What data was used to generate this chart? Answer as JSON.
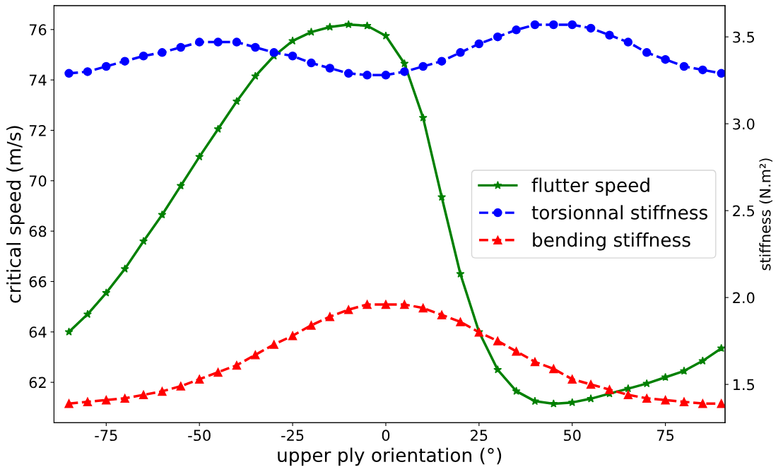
{
  "chart_data": {
    "type": "line",
    "xlabel": "upper ply orientation (°)",
    "ylabel": "critical speed (m/s)",
    "y2label": "stiffness (N.m²)",
    "x": [
      -85,
      -80,
      -75,
      -70,
      -65,
      -60,
      -55,
      -50,
      -45,
      -40,
      -35,
      -30,
      -25,
      -20,
      -15,
      -10,
      -5,
      0,
      5,
      10,
      15,
      20,
      25,
      30,
      35,
      40,
      45,
      50,
      55,
      60,
      65,
      70,
      75,
      80,
      85,
      90
    ],
    "series": [
      {
        "name": "flutter speed",
        "color": "#008000",
        "marker": "star",
        "line_style": "solid",
        "values": [
          64.0,
          64.7,
          65.55,
          66.5,
          67.6,
          68.65,
          69.8,
          70.95,
          72.05,
          73.15,
          74.15,
          74.95,
          75.55,
          75.9,
          76.1,
          76.2,
          76.15,
          75.75,
          74.65,
          72.5,
          69.35,
          66.3,
          64.0,
          62.5,
          61.65,
          61.25,
          61.15,
          61.2,
          61.35,
          61.55,
          61.75,
          61.95,
          62.2,
          62.45,
          62.85,
          63.35
        ]
      },
      {
        "name": "torsionnal stiffness",
        "color": "#0000ff",
        "marker": "circle",
        "line_style": "dashed",
        "axis": "y2",
        "values": [
          3.29,
          3.3,
          3.33,
          3.36,
          3.39,
          3.41,
          3.44,
          3.47,
          3.47,
          3.47,
          3.44,
          3.41,
          3.39,
          3.35,
          3.32,
          3.29,
          3.28,
          3.28,
          3.3,
          3.33,
          3.36,
          3.41,
          3.46,
          3.5,
          3.54,
          3.57,
          3.57,
          3.57,
          3.55,
          3.51,
          3.47,
          3.41,
          3.37,
          3.33,
          3.31,
          3.29
        ]
      },
      {
        "name": "bending stiffness",
        "color": "#ff0000",
        "marker": "triangle",
        "line_style": "dashed",
        "axis": "y2",
        "values": [
          1.39,
          1.4,
          1.41,
          1.42,
          1.44,
          1.46,
          1.49,
          1.53,
          1.57,
          1.61,
          1.67,
          1.73,
          1.78,
          1.84,
          1.89,
          1.93,
          1.96,
          1.96,
          1.96,
          1.94,
          1.9,
          1.86,
          1.8,
          1.75,
          1.69,
          1.63,
          1.59,
          1.53,
          1.5,
          1.47,
          1.44,
          1.42,
          1.41,
          1.4,
          1.39,
          1.39
        ]
      }
    ],
    "xlim": [
      -89,
      91
    ],
    "xticks": [
      -75,
      -50,
      -25,
      0,
      25,
      50,
      75
    ],
    "ylim": [
      60.4,
      76.95
    ],
    "yticks": [
      62,
      64,
      66,
      68,
      70,
      72,
      74,
      76
    ],
    "y2lim": [
      1.28,
      3.68
    ],
    "y2ticks": [
      1.5,
      {
        "value": 2,
        "label": "2.0"
      },
      2.5,
      {
        "value": 3,
        "label": "3.0"
      },
      3.5
    ],
    "legend": "center right",
    "grid": false
  }
}
